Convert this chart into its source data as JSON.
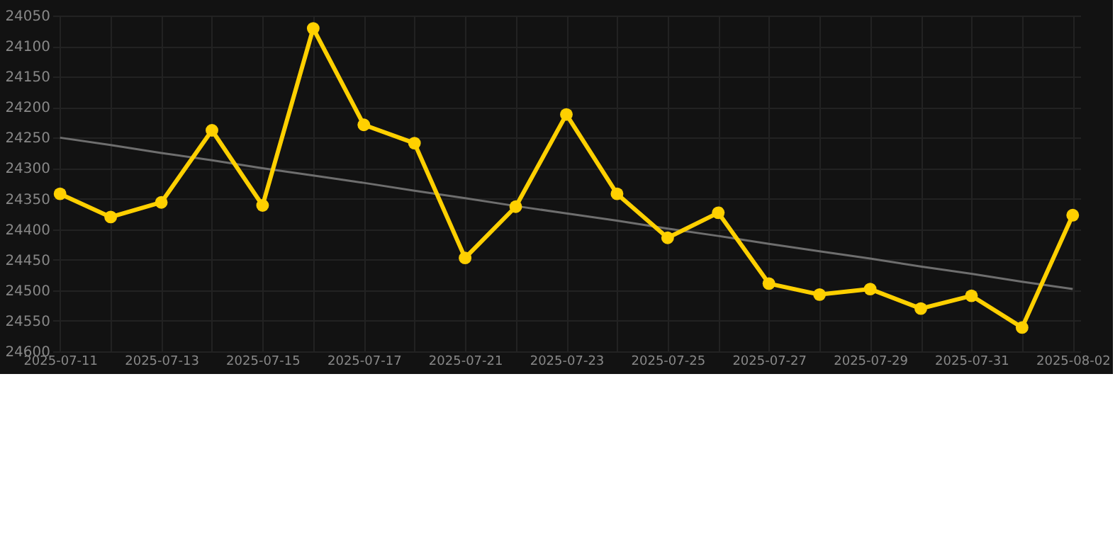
{
  "chart_data": {
    "type": "line",
    "categories": [
      "2025-07-11",
      null,
      "2025-07-13",
      null,
      "2025-07-15",
      null,
      "2025-07-17",
      null,
      "2025-07-21",
      null,
      "2025-07-23",
      null,
      "2025-07-25",
      null,
      "2025-07-27",
      null,
      "2025-07-29",
      null,
      "2025-07-31",
      null,
      "2025-08-02"
    ],
    "series": [
      {
        "color": "#ffd000",
        "marker": "circle",
        "values": [
          24342,
          24380,
          24356,
          24238,
          24361,
          24071,
          24229,
          24259,
          24447,
          24363,
          24212,
          24342,
          24414,
          24373,
          24489,
          24507,
          24498,
          24530,
          24509,
          24561,
          24377
        ]
      },
      {
        "color": "#6e6e6e",
        "marker": "none",
        "values": [
          24250,
          24262,
          24275,
          24287,
          24300,
          24312,
          24324,
          24337,
          24349,
          24362,
          24374,
          24386,
          24399,
          24411,
          24424,
          24436,
          24448,
          24461,
          24473,
          24486,
          24498
        ]
      }
    ],
    "ylim": [
      24600,
      24050
    ],
    "yticks": [
      24050,
      24100,
      24150,
      24200,
      24250,
      24300,
      24350,
      24400,
      24450,
      24500,
      24550,
      24600
    ],
    "grid": true
  }
}
